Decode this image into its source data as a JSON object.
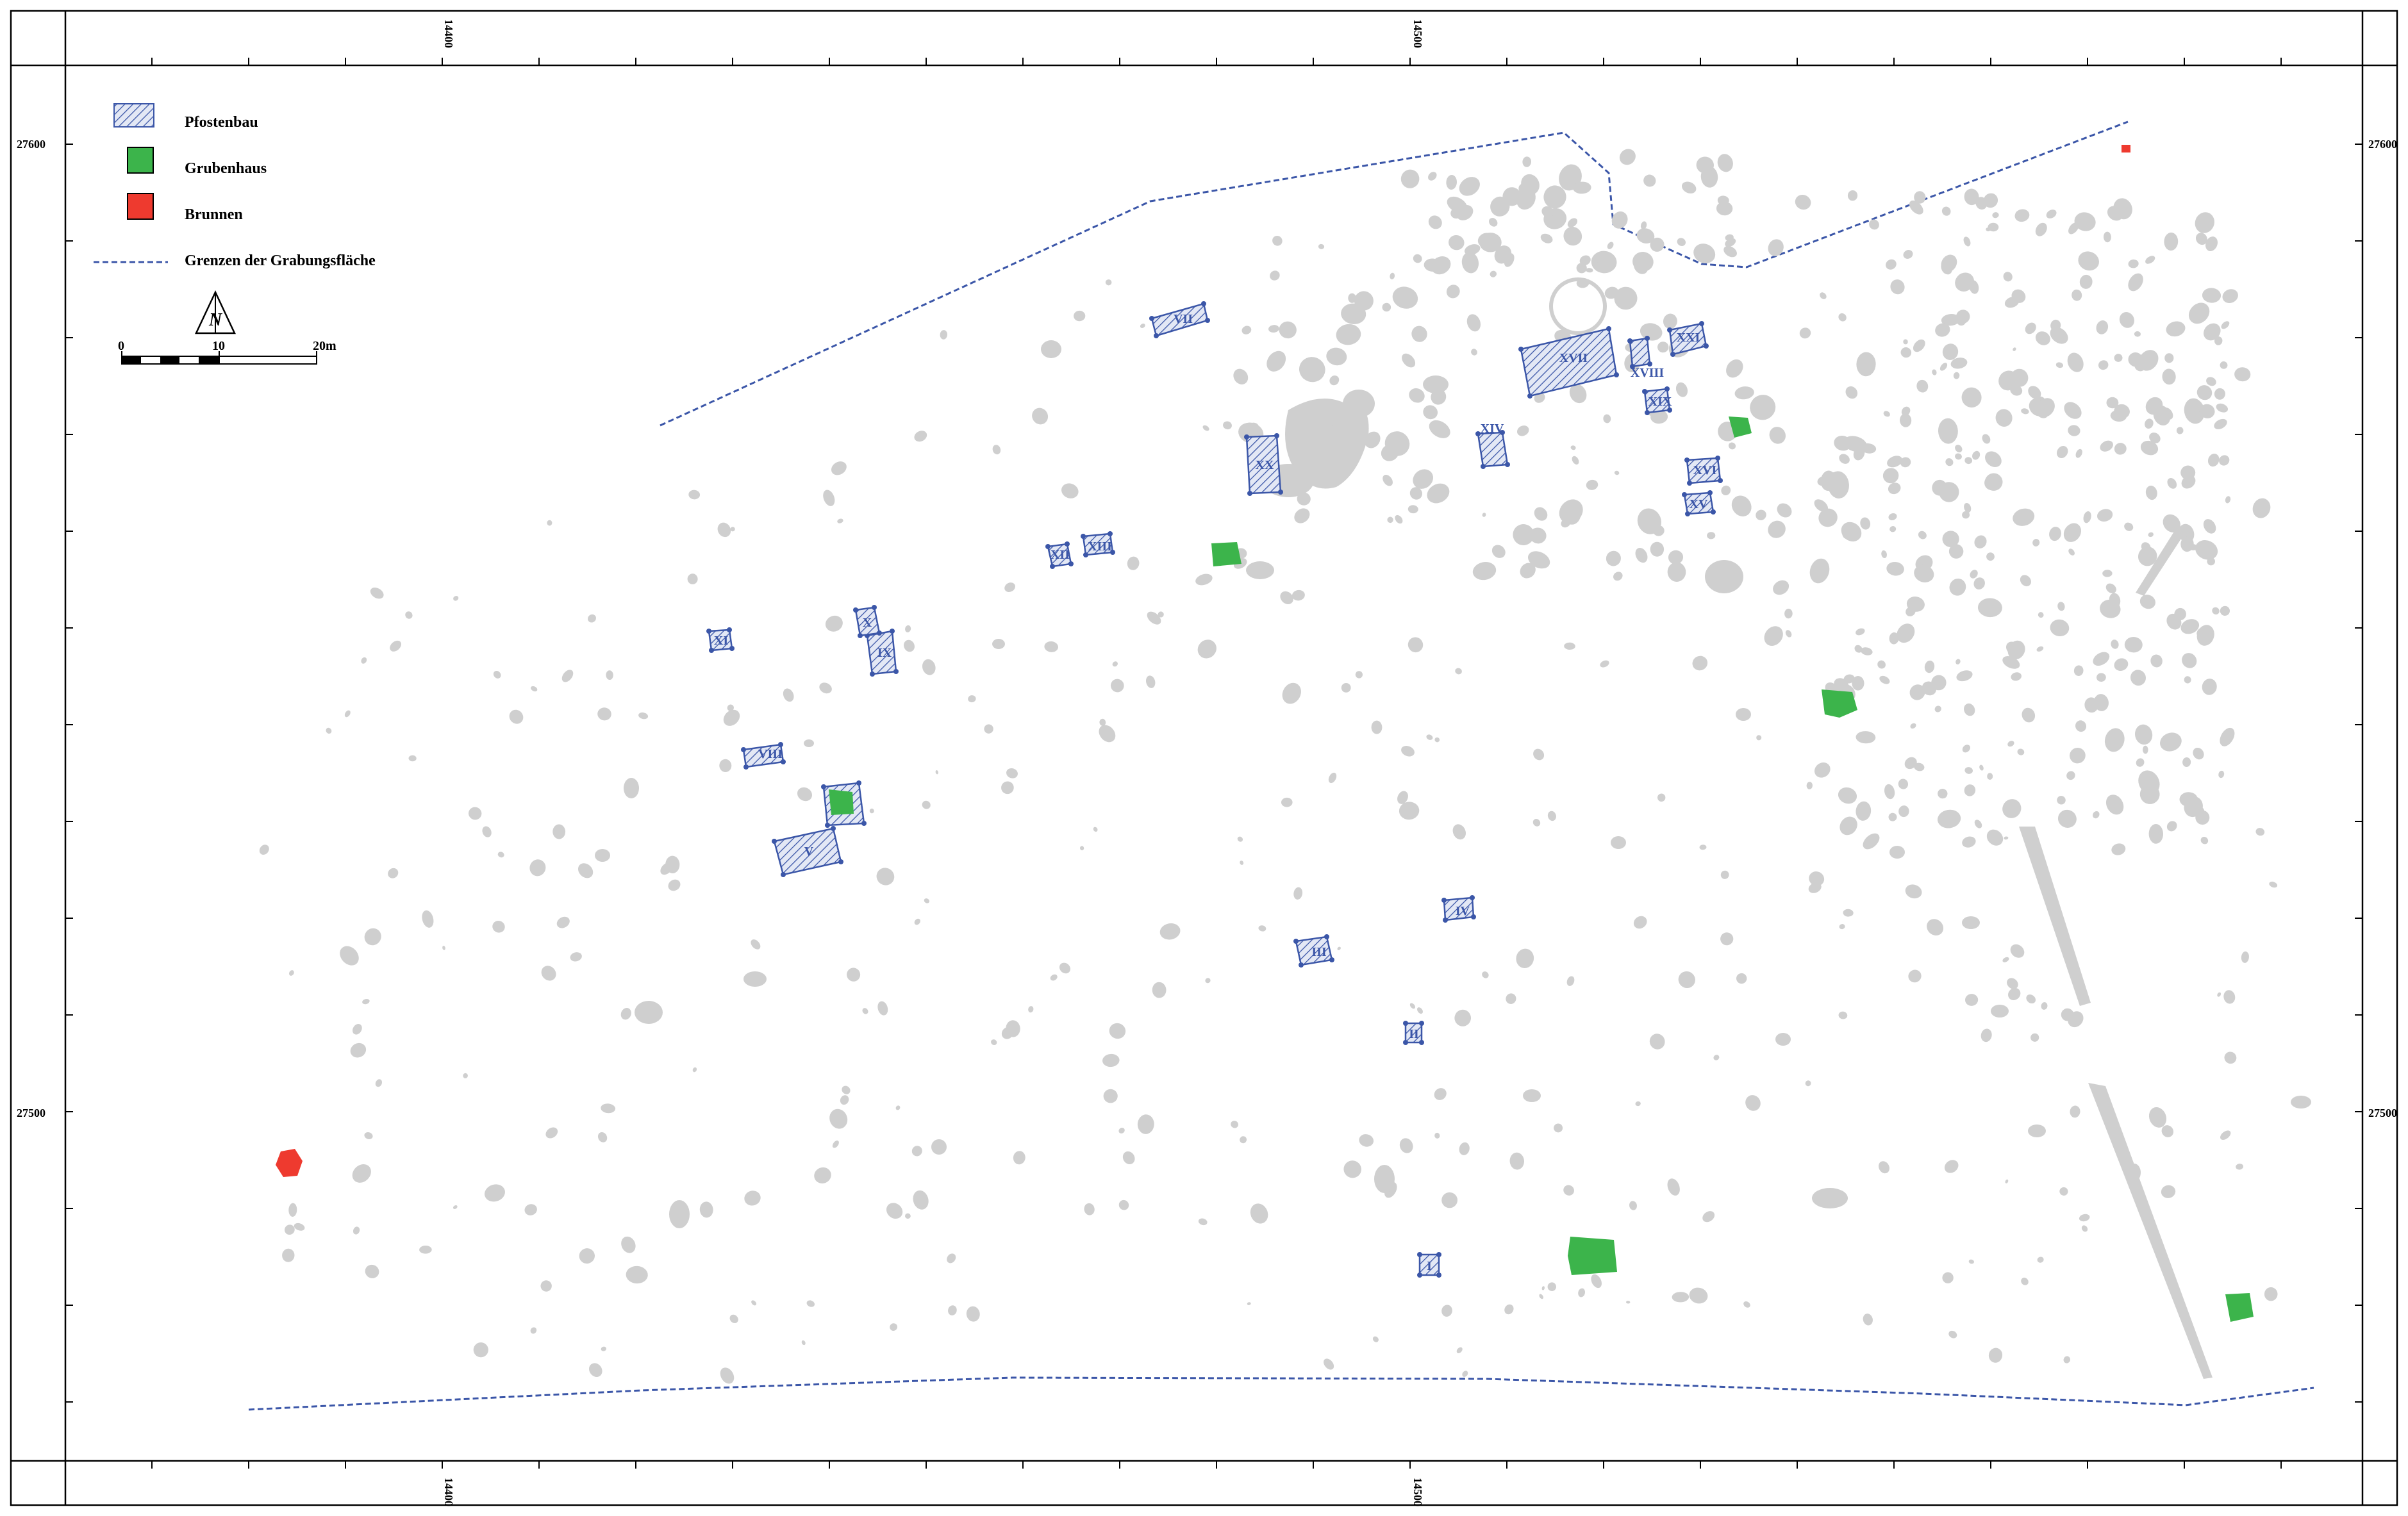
{
  "grid": {
    "easting_labels": [
      "14400",
      "14500"
    ],
    "northing_labels": [
      "27600",
      "27500"
    ]
  },
  "legend": {
    "items": [
      {
        "label": "Pfostenbau",
        "symbol": "hatched-rect",
        "color": "#3b56a8"
      },
      {
        "label": "Grubenhaus",
        "symbol": "filled-rect",
        "color": "#3cb44b"
      },
      {
        "label": "Brunnen",
        "symbol": "filled-rect",
        "color": "#ee3a2f"
      },
      {
        "label": "Grenzen der Grabungsfläche",
        "symbol": "dashed-line",
        "color": "#3b56a8"
      }
    ],
    "north_label": "N",
    "scale_labels": [
      "0",
      "10",
      "20m"
    ]
  },
  "buildings": [
    {
      "id": "I",
      "label": "I"
    },
    {
      "id": "II",
      "label": "II"
    },
    {
      "id": "III",
      "label": "III"
    },
    {
      "id": "IV",
      "label": "IV"
    },
    {
      "id": "V",
      "label": "V"
    },
    {
      "id": "VI",
      "label": "VI"
    },
    {
      "id": "VII",
      "label": "VII"
    },
    {
      "id": "VIII",
      "label": "VIII"
    },
    {
      "id": "IX",
      "label": "IX"
    },
    {
      "id": "X",
      "label": "X"
    },
    {
      "id": "XI",
      "label": "XI"
    },
    {
      "id": "XII",
      "label": "XII"
    },
    {
      "id": "XIII",
      "label": "XIII"
    },
    {
      "id": "XIV",
      "label": "XIV"
    },
    {
      "id": "XV",
      "label": "XV"
    },
    {
      "id": "XVI",
      "label": "XVI"
    },
    {
      "id": "XVII",
      "label": "XVII"
    },
    {
      "id": "XVIII",
      "label": "XVIII"
    },
    {
      "id": "XIX",
      "label": "XIX"
    },
    {
      "id": "XX",
      "label": "XX"
    },
    {
      "id": "XXI",
      "label": "XXI"
    }
  ],
  "colors": {
    "features": "#cfcfcf",
    "pfostenbau": "#3b56a8",
    "grubenhaus": "#3cb44b",
    "brunnen": "#ee3a2f",
    "frame": "#000000"
  }
}
